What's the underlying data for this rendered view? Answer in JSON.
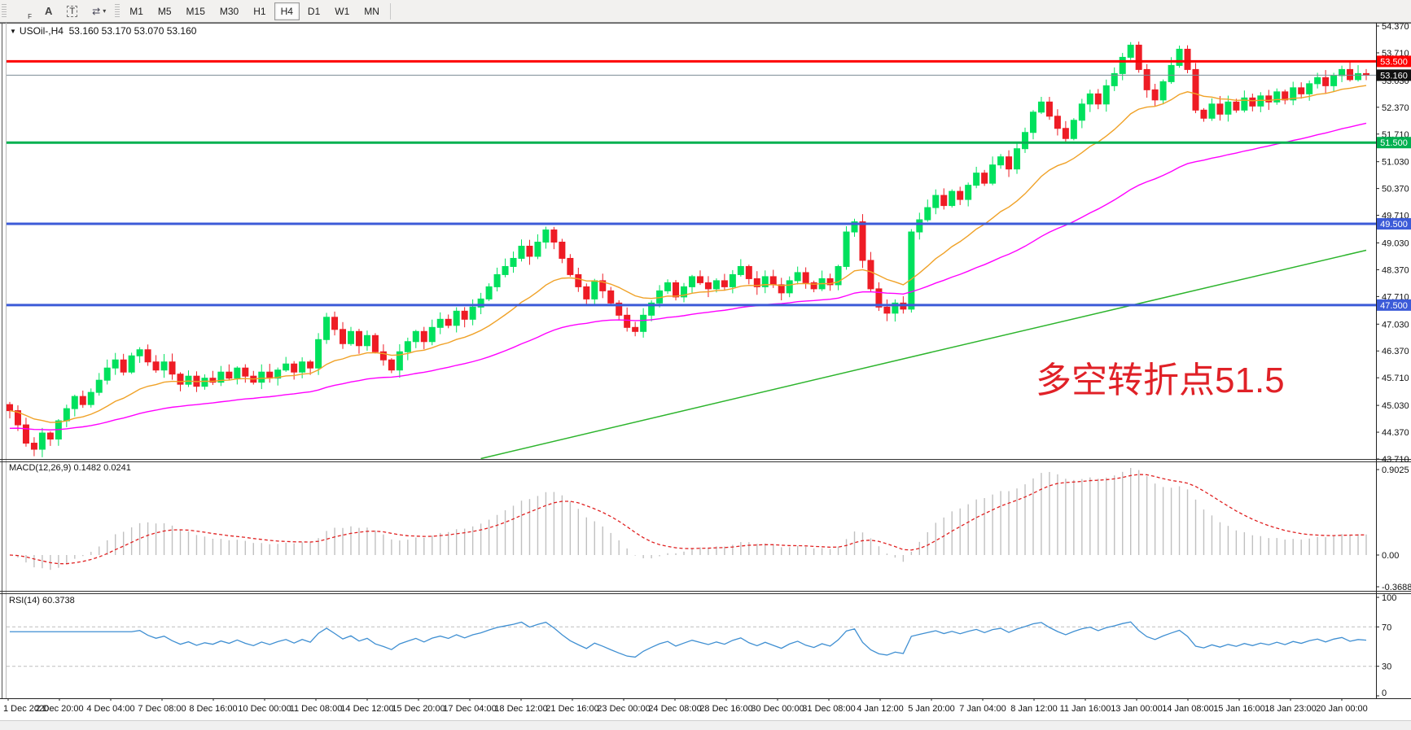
{
  "toolbar": {
    "tools": [
      {
        "name": "freehand-tool",
        "icon": "dotted-grid-f-icon"
      },
      {
        "name": "label-tool",
        "icon": "letter-a-icon"
      },
      {
        "name": "text-tool",
        "icon": "boxed-t-icon"
      },
      {
        "name": "arrow-objects-tool",
        "icon": "arrows-icon"
      }
    ],
    "icon_glyphs": {
      "freehand_f": "F",
      "label_a": "A",
      "text_t": "T",
      "arrows": "⇄",
      "caret": "▾"
    },
    "timeframes": [
      "M1",
      "M5",
      "M15",
      "M30",
      "H1",
      "H4",
      "D1",
      "W1",
      "MN"
    ],
    "active_timeframe": "H4"
  },
  "chart": {
    "title_marker": "▼",
    "symbol_line": "USOil-,H4",
    "ohlc_line": "53.160 53.170 53.070 53.160",
    "macd_label": "MACD(12,26,9) 0.1482 0.0241",
    "rsi_label": "RSI(14) 60.3738",
    "annotation_text": "多空转折点51.5"
  },
  "colors": {
    "candle_up": "#00e15d",
    "candle_down": "#ee1c25",
    "ma_fast": "#f0a228",
    "ma_mid": "#ff00ff",
    "ma_slow": "#2cb42c",
    "hline_red": "#fe0000",
    "hline_green": "#00b050",
    "hline_blue": "#3c5bd8",
    "price_line": "#7d8b96",
    "price_badge": "#111111",
    "macd_hist": "#c0c0c0",
    "macd_signal": "#e02020",
    "rsi_line": "#3f8fd2",
    "annotation": "#e02127"
  },
  "chart_data": {
    "type": "candlestick+indicators",
    "symbol": "USOil-",
    "timeframe": "H4",
    "ohlc_display": {
      "open": "53.160",
      "high": "53.170",
      "low": "53.070",
      "close": "53.160"
    },
    "y_ticks": [
      54.37,
      53.71,
      53.03,
      52.37,
      51.71,
      51.03,
      50.37,
      49.71,
      49.03,
      48.37,
      47.71,
      47.03,
      46.37,
      45.71,
      45.03,
      44.37,
      43.71
    ],
    "y_range": [
      43.71,
      54.37
    ],
    "x_labels": [
      "1 Dec 2020",
      "2 Dec 20:00",
      "4 Dec 04:00",
      "7 Dec 08:00",
      "8 Dec 16:00",
      "10 Dec 00:00",
      "11 Dec 08:00",
      "14 Dec 12:00",
      "15 Dec 20:00",
      "17 Dec 04:00",
      "18 Dec 12:00",
      "21 Dec 16:00",
      "23 Dec 00:00",
      "24 Dec 08:00",
      "28 Dec 16:00",
      "30 Dec 00:00",
      "31 Dec 08:00",
      "4 Jan 12:00",
      "5 Jan 20:00",
      "7 Jan 04:00",
      "8 Jan 12:00",
      "11 Jan 16:00",
      "13 Jan 00:00",
      "14 Jan 08:00",
      "15 Jan 16:00",
      "18 Jan 23:00",
      "20 Jan 00:00"
    ],
    "first_open": 45.05,
    "closes": [
      44.9,
      44.55,
      44.1,
      43.95,
      44.35,
      44.2,
      44.65,
      44.95,
      45.25,
      45.05,
      45.35,
      45.65,
      45.95,
      46.15,
      45.85,
      46.25,
      46.4,
      46.1,
      45.9,
      46.1,
      45.8,
      45.55,
      45.75,
      45.5,
      45.7,
      45.6,
      45.85,
      45.7,
      45.95,
      45.75,
      45.6,
      45.85,
      45.7,
      45.9,
      46.05,
      45.85,
      46.1,
      45.95,
      46.65,
      47.2,
      46.9,
      46.55,
      46.85,
      46.5,
      46.75,
      46.35,
      46.15,
      45.9,
      46.35,
      46.6,
      46.85,
      46.6,
      46.95,
      47.15,
      47.0,
      47.35,
      47.15,
      47.45,
      47.65,
      47.95,
      48.25,
      48.45,
      48.65,
      48.95,
      48.7,
      49.05,
      49.35,
      49.05,
      48.65,
      48.25,
      47.95,
      47.65,
      48.1,
      47.85,
      47.55,
      47.25,
      46.95,
      46.85,
      47.25,
      47.55,
      47.85,
      48.05,
      47.7,
      47.95,
      48.2,
      48.05,
      47.9,
      48.1,
      47.95,
      48.25,
      48.45,
      48.15,
      47.95,
      48.2,
      48.0,
      47.8,
      48.1,
      48.3,
      48.05,
      47.9,
      48.15,
      48.0,
      48.45,
      49.3,
      49.55,
      48.6,
      47.9,
      47.45,
      47.3,
      47.55,
      47.4,
      49.3,
      49.6,
      49.9,
      50.2,
      49.95,
      50.3,
      50.1,
      50.45,
      50.75,
      50.5,
      50.95,
      51.15,
      50.85,
      51.35,
      51.75,
      52.25,
      52.5,
      52.15,
      51.85,
      51.6,
      52.05,
      52.45,
      52.7,
      52.45,
      52.9,
      53.2,
      53.6,
      53.9,
      53.3,
      52.8,
      52.55,
      53.0,
      53.4,
      53.8,
      53.3,
      52.3,
      52.1,
      52.45,
      52.2,
      52.5,
      52.3,
      52.6,
      52.4,
      52.65,
      52.5,
      52.75,
      52.55,
      52.85,
      52.7,
      52.95,
      53.1,
      52.9,
      53.15,
      53.3,
      53.05,
      53.2,
      53.16
    ],
    "hlines": [
      {
        "price": 53.5,
        "label": "53.500",
        "color": "#fe0000"
      },
      {
        "price": 51.5,
        "label": "51.500",
        "color": "#00b050"
      },
      {
        "price": 49.5,
        "label": "49.500",
        "color": "#3c5bd8"
      },
      {
        "price": 47.5,
        "label": "47.500",
        "color": "#3c5bd8"
      }
    ],
    "current_price": {
      "value": 53.16,
      "label": "53.160"
    },
    "moving_averages": {
      "fast_period": 18,
      "mid_period": 55,
      "slow_points": [
        [
          58,
          43.72
        ],
        [
          112,
          46.27
        ],
        [
          167,
          48.85
        ]
      ]
    },
    "macd": {
      "fast": 12,
      "slow": 26,
      "signal": 9,
      "value": 0.1482,
      "signal_value": 0.0241,
      "axis_labels": [
        "0.9025",
        "0.00",
        "-0.3688"
      ]
    },
    "rsi": {
      "period": 14,
      "value": 60.3738,
      "axis_labels": [
        "100",
        "70",
        "30",
        "0"
      ],
      "levels": [
        70,
        30
      ]
    },
    "annotation": {
      "text": "多空转折点51.5"
    }
  }
}
